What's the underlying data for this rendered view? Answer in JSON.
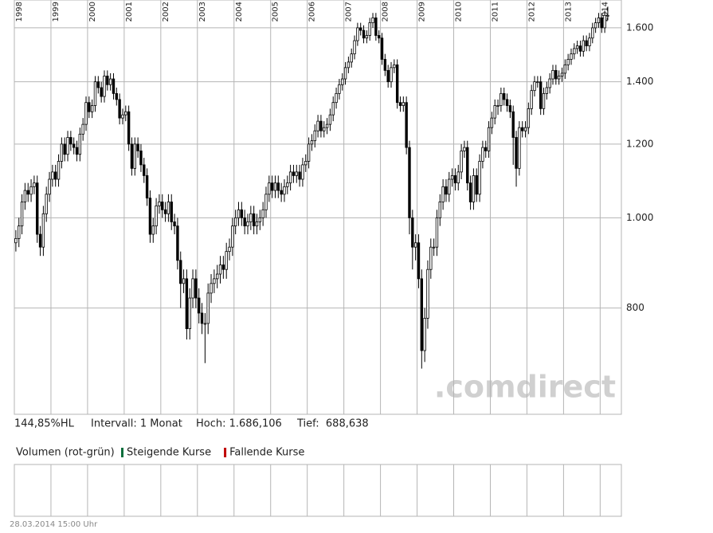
{
  "chart_data": {
    "type": "candlestick",
    "categories": [
      "1998",
      null,
      null,
      null,
      null,
      null,
      null,
      null,
      null,
      null,
      null,
      null,
      "1999",
      null,
      null,
      null,
      null,
      null,
      null,
      null,
      null,
      null,
      null,
      null,
      "2000",
      null,
      null,
      null,
      null,
      null,
      null,
      null,
      null,
      null,
      null,
      null,
      "2001",
      null,
      null,
      null,
      null,
      null,
      null,
      null,
      null,
      null,
      null,
      null,
      "2002",
      null,
      null,
      null,
      null,
      null,
      null,
      null,
      null,
      null,
      null,
      null,
      "2003",
      null,
      null,
      null,
      null,
      null,
      null,
      null,
      null,
      null,
      null,
      null,
      "2004",
      null,
      null,
      null,
      null,
      null,
      null,
      null,
      null,
      null,
      null,
      null,
      "2005",
      null,
      null,
      null,
      null,
      null,
      null,
      null,
      null,
      null,
      null,
      null,
      "2006",
      null,
      null,
      null,
      null,
      null,
      null,
      null,
      null,
      null,
      null,
      null,
      "2007",
      null,
      null,
      null,
      null,
      null,
      null,
      null,
      null,
      null,
      null,
      null,
      "2008",
      null,
      null,
      null,
      null,
      null,
      null,
      null,
      null,
      null,
      null,
      null,
      "2009",
      null,
      null,
      null,
      null,
      null,
      null,
      null,
      null,
      null,
      null,
      null,
      "2010",
      null,
      null,
      null,
      null,
      null,
      null,
      null,
      null,
      null,
      null,
      null,
      "2011",
      null,
      null,
      null,
      null,
      null,
      null,
      null,
      null,
      null,
      null,
      null,
      "2012",
      null,
      null,
      null,
      null,
      null,
      null,
      null,
      null,
      null,
      null,
      null,
      "2013",
      null,
      null,
      null,
      null,
      null,
      null,
      null,
      null,
      null,
      null,
      null,
      "2014",
      null,
      null
    ],
    "values": [
      [
        940,
        970,
        920,
        950
      ],
      [
        950,
        1000,
        930,
        980
      ],
      [
        980,
        1060,
        960,
        1040
      ],
      [
        1040,
        1090,
        1020,
        1070
      ],
      [
        1070,
        1090,
        1040,
        1060
      ],
      [
        1060,
        1100,
        1040,
        1080
      ],
      [
        1080,
        1110,
        1060,
        1090
      ],
      [
        1090,
        1110,
        940,
        960
      ],
      [
        960,
        980,
        910,
        930
      ],
      [
        930,
        1030,
        910,
        1010
      ],
      [
        1010,
        1080,
        990,
        1060
      ],
      [
        1060,
        1120,
        1040,
        1100
      ],
      [
        1100,
        1140,
        1080,
        1120
      ],
      [
        1120,
        1140,
        1080,
        1100
      ],
      [
        1100,
        1170,
        1080,
        1150
      ],
      [
        1150,
        1220,
        1130,
        1200
      ],
      [
        1200,
        1220,
        1150,
        1170
      ],
      [
        1170,
        1240,
        1150,
        1220
      ],
      [
        1220,
        1240,
        1180,
        1200
      ],
      [
        1200,
        1220,
        1170,
        1190
      ],
      [
        1190,
        1210,
        1150,
        1170
      ],
      [
        1170,
        1250,
        1150,
        1230
      ],
      [
        1230,
        1280,
        1210,
        1260
      ],
      [
        1260,
        1350,
        1240,
        1330
      ],
      [
        1330,
        1350,
        1280,
        1300
      ],
      [
        1300,
        1340,
        1280,
        1320
      ],
      [
        1320,
        1420,
        1300,
        1400
      ],
      [
        1400,
        1420,
        1360,
        1380
      ],
      [
        1380,
        1400,
        1330,
        1350
      ],
      [
        1350,
        1440,
        1330,
        1420
      ],
      [
        1420,
        1440,
        1370,
        1390
      ],
      [
        1390,
        1430,
        1370,
        1410
      ],
      [
        1410,
        1430,
        1340,
        1360
      ],
      [
        1360,
        1380,
        1320,
        1340
      ],
      [
        1340,
        1360,
        1260,
        1280
      ],
      [
        1280,
        1310,
        1260,
        1290
      ],
      [
        1290,
        1320,
        1270,
        1300
      ],
      [
        1300,
        1320,
        1180,
        1200
      ],
      [
        1200,
        1220,
        1110,
        1130
      ],
      [
        1130,
        1220,
        1110,
        1200
      ],
      [
        1200,
        1220,
        1160,
        1180
      ],
      [
        1180,
        1200,
        1120,
        1140
      ],
      [
        1140,
        1160,
        1090,
        1110
      ],
      [
        1110,
        1130,
        1030,
        1050
      ],
      [
        1050,
        1070,
        940,
        960
      ],
      [
        960,
        1000,
        940,
        980
      ],
      [
        980,
        1050,
        960,
        1030
      ],
      [
        1030,
        1060,
        1010,
        1040
      ],
      [
        1040,
        1060,
        1000,
        1020
      ],
      [
        1020,
        1040,
        990,
        1010
      ],
      [
        1010,
        1060,
        990,
        1040
      ],
      [
        1040,
        1060,
        970,
        990
      ],
      [
        990,
        1010,
        960,
        980
      ],
      [
        980,
        1000,
        880,
        900
      ],
      [
        900,
        920,
        800,
        850
      ],
      [
        850,
        880,
        830,
        860
      ],
      [
        860,
        880,
        740,
        760
      ],
      [
        760,
        840,
        740,
        820
      ],
      [
        820,
        880,
        800,
        860
      ],
      [
        860,
        880,
        800,
        820
      ],
      [
        820,
        840,
        770,
        790
      ],
      [
        790,
        810,
        750,
        770
      ],
      [
        770,
        790,
        698,
        770
      ],
      [
        770,
        850,
        750,
        830
      ],
      [
        830,
        870,
        810,
        850
      ],
      [
        850,
        880,
        830,
        860
      ],
      [
        860,
        890,
        840,
        870
      ],
      [
        870,
        910,
        850,
        890
      ],
      [
        890,
        910,
        860,
        880
      ],
      [
        880,
        940,
        860,
        920
      ],
      [
        920,
        950,
        900,
        930
      ],
      [
        930,
        1000,
        910,
        980
      ],
      [
        980,
        1020,
        960,
        1000
      ],
      [
        1000,
        1040,
        980,
        1020
      ],
      [
        1020,
        1040,
        980,
        1000
      ],
      [
        1000,
        1020,
        960,
        980
      ],
      [
        980,
        1010,
        960,
        990
      ],
      [
        990,
        1030,
        970,
        1010
      ],
      [
        1010,
        1030,
        960,
        980
      ],
      [
        980,
        1010,
        960,
        990
      ],
      [
        990,
        1020,
        970,
        1000
      ],
      [
        1000,
        1040,
        980,
        1020
      ],
      [
        1020,
        1080,
        1000,
        1060
      ],
      [
        1060,
        1110,
        1040,
        1090
      ],
      [
        1090,
        1110,
        1050,
        1070
      ],
      [
        1070,
        1110,
        1050,
        1090
      ],
      [
        1090,
        1110,
        1050,
        1070
      ],
      [
        1070,
        1090,
        1040,
        1060
      ],
      [
        1060,
        1100,
        1040,
        1080
      ],
      [
        1080,
        1110,
        1060,
        1090
      ],
      [
        1090,
        1140,
        1070,
        1120
      ],
      [
        1120,
        1140,
        1090,
        1110
      ],
      [
        1110,
        1140,
        1090,
        1120
      ],
      [
        1120,
        1140,
        1080,
        1100
      ],
      [
        1100,
        1160,
        1080,
        1140
      ],
      [
        1140,
        1170,
        1120,
        1150
      ],
      [
        1150,
        1220,
        1130,
        1200
      ],
      [
        1200,
        1230,
        1180,
        1210
      ],
      [
        1210,
        1260,
        1190,
        1240
      ],
      [
        1240,
        1290,
        1220,
        1270
      ],
      [
        1270,
        1290,
        1220,
        1240
      ],
      [
        1240,
        1270,
        1220,
        1250
      ],
      [
        1250,
        1280,
        1230,
        1260
      ],
      [
        1260,
        1310,
        1240,
        1290
      ],
      [
        1290,
        1350,
        1270,
        1330
      ],
      [
        1330,
        1380,
        1310,
        1360
      ],
      [
        1360,
        1410,
        1340,
        1390
      ],
      [
        1390,
        1430,
        1370,
        1410
      ],
      [
        1410,
        1470,
        1390,
        1450
      ],
      [
        1450,
        1490,
        1430,
        1470
      ],
      [
        1470,
        1520,
        1450,
        1500
      ],
      [
        1500,
        1570,
        1480,
        1550
      ],
      [
        1550,
        1620,
        1530,
        1600
      ],
      [
        1600,
        1620,
        1570,
        1590
      ],
      [
        1590,
        1610,
        1540,
        1560
      ],
      [
        1560,
        1590,
        1540,
        1570
      ],
      [
        1570,
        1640,
        1550,
        1620
      ],
      [
        1620,
        1660,
        1600,
        1640
      ],
      [
        1640,
        1660,
        1550,
        1570
      ],
      [
        1570,
        1590,
        1540,
        1560
      ],
      [
        1560,
        1580,
        1460,
        1480
      ],
      [
        1480,
        1500,
        1420,
        1440
      ],
      [
        1440,
        1460,
        1380,
        1400
      ],
      [
        1400,
        1470,
        1380,
        1450
      ],
      [
        1450,
        1480,
        1430,
        1460
      ],
      [
        1460,
        1480,
        1310,
        1330
      ],
      [
        1330,
        1350,
        1300,
        1320
      ],
      [
        1320,
        1350,
        1300,
        1330
      ],
      [
        1330,
        1350,
        1170,
        1190
      ],
      [
        1190,
        1210,
        960,
        1000
      ],
      [
        1000,
        1020,
        880,
        930
      ],
      [
        930,
        960,
        900,
        940
      ],
      [
        940,
        960,
        840,
        860
      ],
      [
        860,
        880,
        688.638,
        720
      ],
      [
        720,
        800,
        700,
        780
      ],
      [
        780,
        900,
        760,
        880
      ],
      [
        880,
        950,
        860,
        930
      ],
      [
        930,
        950,
        910,
        930
      ],
      [
        930,
        1020,
        910,
        1000
      ],
      [
        1000,
        1060,
        980,
        1040
      ],
      [
        1040,
        1100,
        1020,
        1080
      ],
      [
        1080,
        1100,
        1040,
        1060
      ],
      [
        1060,
        1120,
        1040,
        1100
      ],
      [
        1100,
        1130,
        1080,
        1110
      ],
      [
        1110,
        1130,
        1070,
        1090
      ],
      [
        1090,
        1140,
        1070,
        1120
      ],
      [
        1120,
        1200,
        1100,
        1180
      ],
      [
        1180,
        1210,
        1160,
        1190
      ],
      [
        1190,
        1210,
        1070,
        1090
      ],
      [
        1090,
        1110,
        1020,
        1040
      ],
      [
        1040,
        1130,
        1020,
        1110
      ],
      [
        1110,
        1130,
        1040,
        1060
      ],
      [
        1060,
        1170,
        1040,
        1150
      ],
      [
        1150,
        1210,
        1130,
        1190
      ],
      [
        1190,
        1210,
        1160,
        1180
      ],
      [
        1180,
        1270,
        1160,
        1250
      ],
      [
        1250,
        1300,
        1230,
        1280
      ],
      [
        1280,
        1340,
        1260,
        1320
      ],
      [
        1320,
        1340,
        1290,
        1320
      ],
      [
        1320,
        1380,
        1300,
        1360
      ],
      [
        1360,
        1380,
        1320,
        1340
      ],
      [
        1340,
        1360,
        1300,
        1320
      ],
      [
        1320,
        1340,
        1280,
        1300
      ],
      [
        1300,
        1320,
        1140,
        1220
      ],
      [
        1220,
        1240,
        1080,
        1130
      ],
      [
        1130,
        1270,
        1110,
        1250
      ],
      [
        1250,
        1270,
        1220,
        1240
      ],
      [
        1240,
        1270,
        1220,
        1250
      ],
      [
        1250,
        1330,
        1230,
        1310
      ],
      [
        1310,
        1390,
        1290,
        1370
      ],
      [
        1370,
        1420,
        1350,
        1400
      ],
      [
        1400,
        1420,
        1380,
        1400
      ],
      [
        1400,
        1420,
        1290,
        1310
      ],
      [
        1310,
        1380,
        1290,
        1360
      ],
      [
        1360,
        1400,
        1340,
        1380
      ],
      [
        1380,
        1430,
        1360,
        1410
      ],
      [
        1410,
        1460,
        1390,
        1440
      ],
      [
        1440,
        1460,
        1390,
        1410
      ],
      [
        1410,
        1440,
        1390,
        1420
      ],
      [
        1420,
        1450,
        1400,
        1430
      ],
      [
        1430,
        1480,
        1410,
        1460
      ],
      [
        1460,
        1500,
        1440,
        1480
      ],
      [
        1480,
        1520,
        1460,
        1500
      ],
      [
        1500,
        1540,
        1480,
        1520
      ],
      [
        1520,
        1550,
        1500,
        1530
      ],
      [
        1530,
        1550,
        1490,
        1510
      ],
      [
        1510,
        1570,
        1490,
        1550
      ],
      [
        1550,
        1570,
        1510,
        1530
      ],
      [
        1530,
        1580,
        1510,
        1560
      ],
      [
        1560,
        1620,
        1540,
        1600
      ],
      [
        1600,
        1640,
        1580,
        1620
      ],
      [
        1620,
        1660,
        1600,
        1640
      ],
      [
        1640,
        1660,
        1580,
        1600
      ],
      [
        1600,
        1670,
        1580,
        1650
      ],
      [
        1650,
        1686.106,
        1630,
        1650
      ]
    ],
    "ylim": [
      615,
      1714
    ],
    "log_scale": true,
    "grid": true,
    "yticks": [
      800,
      {
        "value": 1000,
        "label": "1.000"
      },
      {
        "value": 1200,
        "label": "1.200"
      },
      {
        "value": 1400,
        "label": "1.400"
      },
      {
        "value": 1600,
        "label": "1.600"
      }
    ],
    "rising_color": "#ffffff",
    "falling_color": "#000000",
    "watermark": ".comdirect",
    "info": {
      "change": "144,85%HL",
      "interval": "Intervall: 1 Monat",
      "high": "Hoch: 1.686,106",
      "low": "Tief:  688,638"
    },
    "volume_panel": {
      "title": "Volumen (rot-grün)",
      "legend": [
        {
          "name": "Steigende Kurse",
          "color": "#0a6e3c"
        },
        {
          "name": "Fallende Kurse",
          "color": "#c00000"
        }
      ]
    },
    "timestamp": "28.03.2014 15:00 Uhr"
  }
}
